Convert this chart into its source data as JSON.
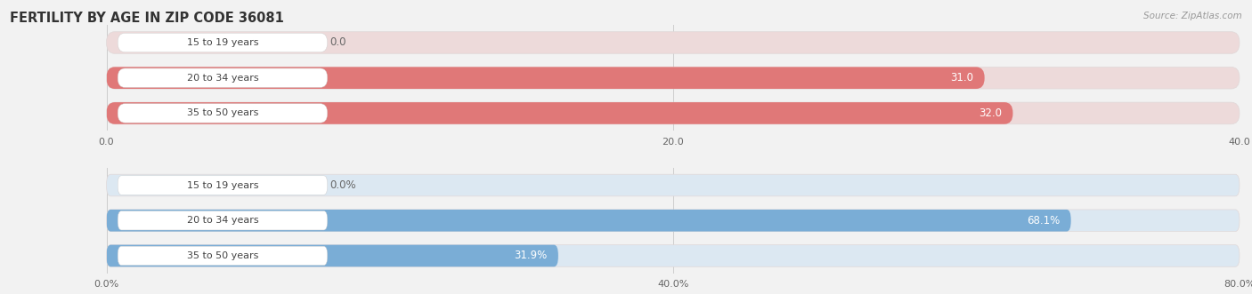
{
  "title": "FERTILITY BY AGE IN ZIP CODE 36081",
  "source_text": "Source: ZipAtlas.com",
  "top_chart": {
    "categories": [
      "15 to 19 years",
      "20 to 34 years",
      "35 to 50 years"
    ],
    "values": [
      0.0,
      31.0,
      32.0
    ],
    "xlim": [
      0,
      40.0
    ],
    "xticks": [
      0.0,
      20.0,
      40.0
    ],
    "xtick_labels": [
      "0.0",
      "20.0",
      "40.0"
    ],
    "bar_color": "#e07878",
    "bar_bg_color": "#eddada",
    "label_pill_color": "#ffffff"
  },
  "bottom_chart": {
    "categories": [
      "15 to 19 years",
      "20 to 34 years",
      "35 to 50 years"
    ],
    "values": [
      0.0,
      68.1,
      31.9
    ],
    "xlim": [
      0,
      80.0
    ],
    "xticks": [
      0.0,
      40.0,
      80.0
    ],
    "xtick_labels": [
      "0.0%",
      "40.0%",
      "80.0%"
    ],
    "bar_color": "#7aadd6",
    "bar_bg_color": "#dce8f2",
    "label_pill_color": "#ffffff"
  },
  "bg_color": "#f2f2f2",
  "bar_height": 0.62,
  "label_fontsize": 8.5,
  "category_fontsize": 8.0,
  "title_fontsize": 10.5,
  "tick_fontsize": 8.0,
  "value_fontsize": 8.5
}
